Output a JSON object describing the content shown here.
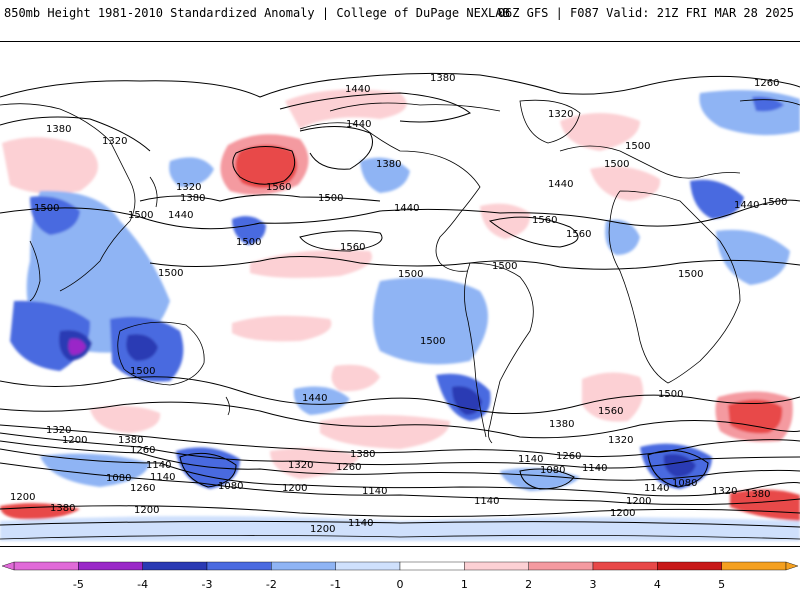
{
  "header": {
    "left_title": "850mb Height 1981-2010 Standardized Anomaly | College of DuPage NEXLAB",
    "right_title": "06Z GFS | F087 Valid: 21Z FRI MAR 28 2025"
  },
  "map": {
    "height_labels": [
      {
        "text": "1380"
      },
      {
        "text": "1440"
      },
      {
        "text": "1380"
      },
      {
        "text": "1320"
      },
      {
        "text": "1260"
      },
      {
        "text": "1320"
      },
      {
        "text": "1440"
      },
      {
        "text": "1560"
      },
      {
        "text": "1320"
      },
      {
        "text": "1380"
      },
      {
        "text": "1440"
      },
      {
        "text": "1500"
      },
      {
        "text": "1380"
      },
      {
        "text": "1500"
      },
      {
        "text": "1440"
      },
      {
        "text": "1500"
      },
      {
        "text": "1500"
      },
      {
        "text": "1440"
      },
      {
        "text": "1500"
      },
      {
        "text": "1560"
      },
      {
        "text": "1560"
      },
      {
        "text": "1500"
      },
      {
        "text": "1500"
      },
      {
        "text": "1500"
      },
      {
        "text": "1500"
      },
      {
        "text": "1500"
      },
      {
        "text": "1500"
      },
      {
        "text": "1440"
      },
      {
        "text": "1500"
      },
      {
        "text": "1560"
      },
      {
        "text": "1500"
      },
      {
        "text": "1440"
      },
      {
        "text": "1380"
      },
      {
        "text": "1560"
      },
      {
        "text": "1320"
      },
      {
        "text": "1500"
      },
      {
        "text": "1320"
      },
      {
        "text": "1380"
      },
      {
        "text": "1200"
      },
      {
        "text": "1260"
      },
      {
        "text": "1140"
      },
      {
        "text": "1080"
      },
      {
        "text": "1140"
      },
      {
        "text": "1080"
      },
      {
        "text": "1260"
      },
      {
        "text": "1200"
      },
      {
        "text": "1320"
      },
      {
        "text": "1260"
      },
      {
        "text": "1380"
      },
      {
        "text": "1200"
      },
      {
        "text": "1260"
      },
      {
        "text": "1140"
      },
      {
        "text": "1080"
      },
      {
        "text": "1140"
      },
      {
        "text": "1140"
      },
      {
        "text": "1080"
      },
      {
        "text": "1200"
      },
      {
        "text": "1140"
      },
      {
        "text": "1320"
      },
      {
        "text": "1380"
      },
      {
        "text": "1200"
      },
      {
        "text": "1380"
      },
      {
        "text": "1200"
      },
      {
        "text": "1140"
      },
      {
        "text": "1140"
      },
      {
        "text": "1200"
      }
    ]
  },
  "colorbar": {
    "ticks": [
      "-5",
      "-4",
      "-3",
      "-2",
      "-1",
      "0",
      "1",
      "2",
      "3",
      "4",
      "5"
    ],
    "colors": [
      "#e06ad8",
      "#9a28c8",
      "#2a3ab4",
      "#4a6ae0",
      "#8fb4f4",
      "#cfe0fc",
      "#ffffff",
      "#fcd0d4",
      "#f49aa0",
      "#e84848",
      "#c81818",
      "#f4a020"
    ]
  }
}
